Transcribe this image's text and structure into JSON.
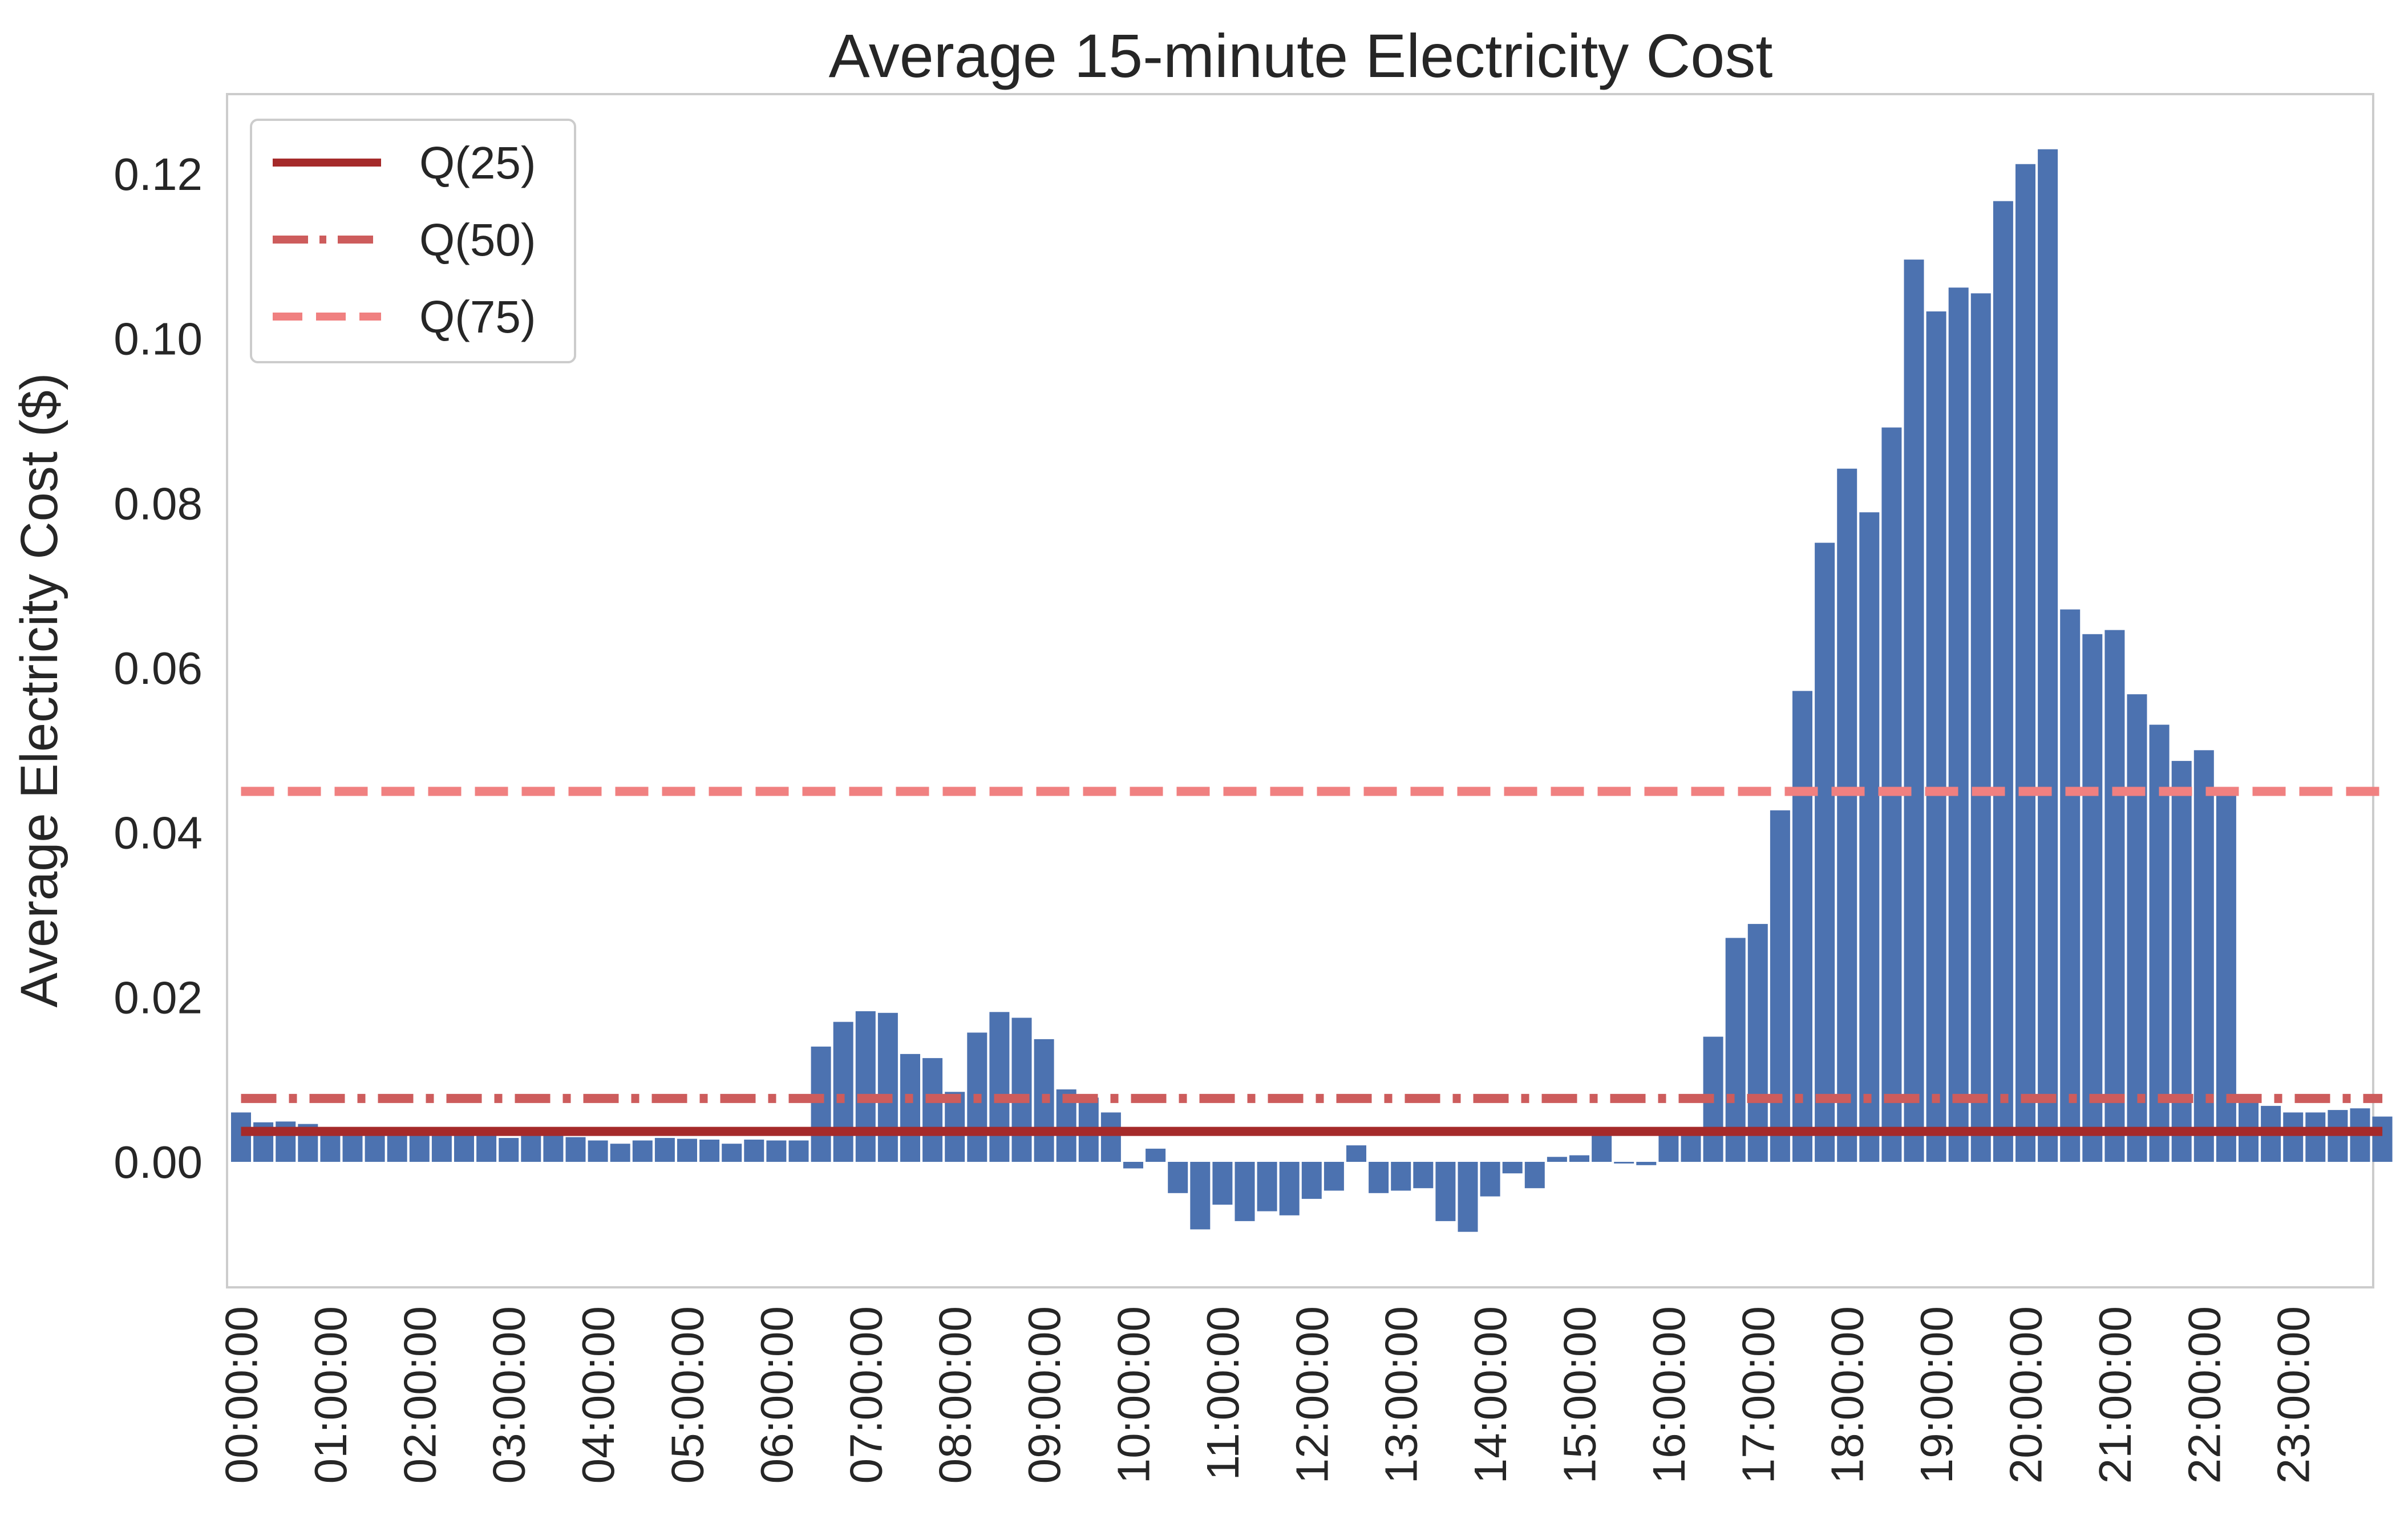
{
  "chart_data": {
    "type": "bar",
    "title": "Average 15-minute Electricity Cost",
    "xlabel": "",
    "ylabel": "Average Electricity Cost ($)",
    "ylim": [
      -0.015,
      0.13
    ],
    "yticks": [
      0.0,
      0.02,
      0.04,
      0.06,
      0.08,
      0.1,
      0.12
    ],
    "ytick_labels": [
      "0.00",
      "0.02",
      "0.04",
      "0.06",
      "0.08",
      "0.10",
      "0.12"
    ],
    "xtick_labels": [
      "00:00:00",
      "01:00:00",
      "02:00:00",
      "03:00:00",
      "04:00:00",
      "05:00:00",
      "06:00:00",
      "07:00:00",
      "08:00:00",
      "09:00:00",
      "10:00:00",
      "11:00:00",
      "12:00:00",
      "13:00:00",
      "14:00:00",
      "15:00:00",
      "16:00:00",
      "17:00:00",
      "18:00:00",
      "19:00:00",
      "20:00:00",
      "21:00:00",
      "22:00:00",
      "23:00:00"
    ],
    "bar_color": "#4c72b0",
    "values": [
      0.006,
      0.0048,
      0.0049,
      0.0046,
      0.0038,
      0.0038,
      0.0038,
      0.004,
      0.0035,
      0.0034,
      0.0033,
      0.0032,
      0.0029,
      0.0032,
      0.0033,
      0.003,
      0.0026,
      0.0022,
      0.0026,
      0.0029,
      0.0028,
      0.0027,
      0.0022,
      0.0027,
      0.0026,
      0.0026,
      0.014,
      0.017,
      0.0183,
      0.0181,
      0.0131,
      0.0126,
      0.0085,
      0.0157,
      0.0182,
      0.0175,
      0.0149,
      0.0088,
      0.0078,
      0.006,
      -0.0008,
      0.0016,
      -0.0038,
      -0.0082,
      -0.0052,
      -0.0072,
      -0.006,
      -0.0065,
      -0.0045,
      -0.0035,
      0.002,
      -0.0038,
      -0.0035,
      -0.0032,
      -0.0072,
      -0.0085,
      -0.0042,
      -0.0014,
      -0.0032,
      0.0006,
      0.0008,
      0.0035,
      -0.0002,
      -0.0004,
      0.0035,
      0.0035,
      0.0152,
      0.0272,
      0.0289,
      0.0427,
      0.0572,
      0.0752,
      0.0842,
      0.0789,
      0.0892,
      0.1096,
      0.1033,
      0.1062,
      0.1055,
      0.1167,
      0.1212,
      0.123,
      0.0671,
      0.0641,
      0.0646,
      0.0568,
      0.0531,
      0.0487,
      0.05,
      0.0451,
      0.0075,
      0.0068,
      0.006,
      0.006,
      0.0063,
      0.0065,
      0.0055
    ],
    "reference_lines": [
      {
        "name": "Q(25)",
        "value": 0.0037,
        "color": "#a52a2a",
        "style": "solid"
      },
      {
        "name": "Q(50)",
        "value": 0.0077,
        "color": "#cd5c5c",
        "style": "dashdot"
      },
      {
        "name": "Q(75)",
        "value": 0.045,
        "color": "#f08080",
        "style": "dashed"
      }
    ],
    "legend_position": "top-left",
    "grid": false
  }
}
